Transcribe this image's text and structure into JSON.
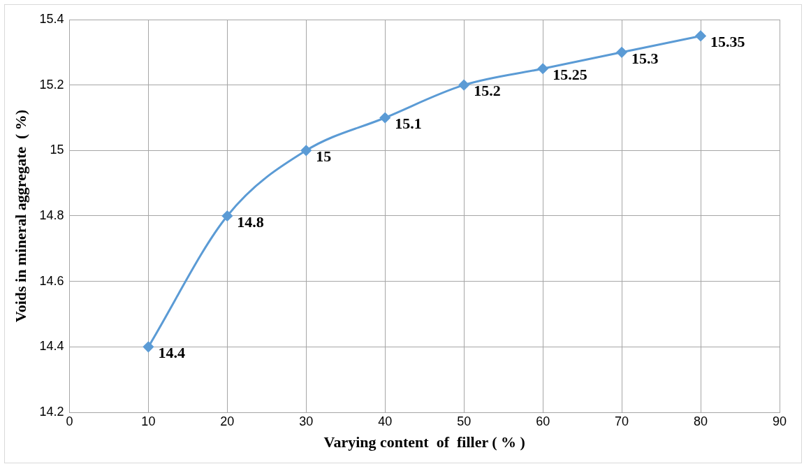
{
  "chart_data": {
    "type": "line",
    "xlabel": "Varying content  of  filler ( % )",
    "ylabel": "Voids in mineral aggregate  ( %)",
    "x": [
      10,
      20,
      30,
      40,
      50,
      60,
      70,
      80
    ],
    "values": [
      14.4,
      14.8,
      15,
      15.1,
      15.2,
      15.25,
      15.3,
      15.35
    ],
    "color": "#5b9bd5",
    "xlim": [
      0,
      90
    ],
    "xticks": [
      0,
      10,
      20,
      30,
      40,
      50,
      60,
      70,
      80,
      90
    ],
    "ylim": [
      14.2,
      15.4
    ],
    "yticks": [
      {
        "value": 14.2,
        "label": "14.2"
      },
      {
        "value": 14.4,
        "label": "14.4"
      },
      {
        "value": 14.6,
        "label": "14.6"
      },
      {
        "value": 14.8,
        "label": "14.8"
      },
      {
        "value": 15,
        "label": "15"
      },
      {
        "value": 15.2,
        "label": "15.2"
      },
      {
        "value": 15.4,
        "label": "15.4"
      }
    ],
    "grid": true,
    "legend": false,
    "marker": "diamond",
    "line_style": "solid",
    "data_labels": true
  }
}
